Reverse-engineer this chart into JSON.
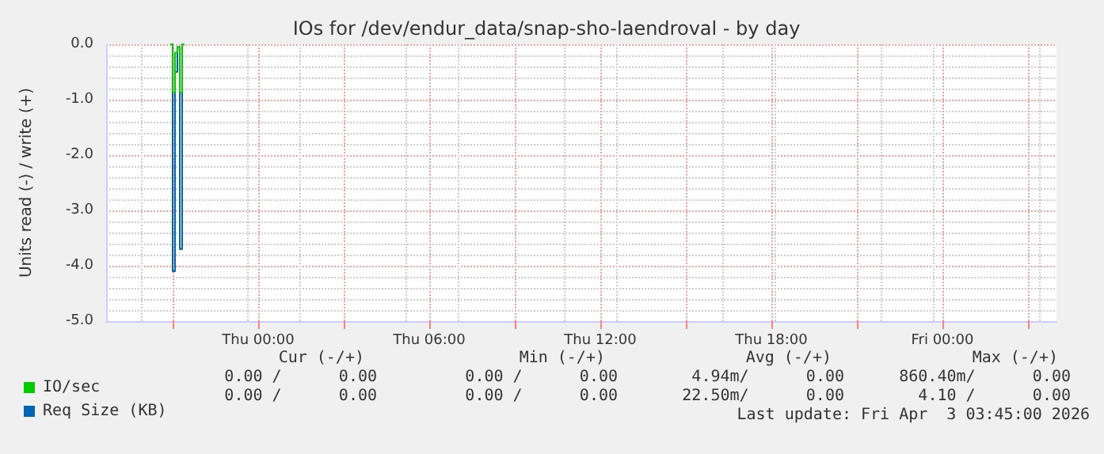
{
  "chart_data": {
    "type": "step",
    "title": "IOs for /dev/endur_data/snap-sho-laendroval - by day",
    "ylabel": "Units read (-) / write (+)",
    "series": [
      {
        "name": "IO/sec",
        "color": "#00cc00",
        "x": [
          "2026-04-01T20:55",
          "2026-04-01T21:00",
          "2026-04-01T21:05",
          "2026-04-01T21:10",
          "2026-04-01T21:15",
          "2026-04-01T21:20",
          "2026-04-01T21:25"
        ],
        "values": [
          0,
          -0.87,
          -0.15,
          -0.05,
          -0.87,
          0,
          0
        ]
      },
      {
        "name": "Req Size (KB)",
        "color": "#0066b3",
        "x": [
          "2026-04-01T20:55",
          "2026-04-01T21:00",
          "2026-04-01T21:05",
          "2026-04-01T21:10",
          "2026-04-01T21:15",
          "2026-04-01T21:20",
          "2026-04-01T21:25"
        ],
        "values": [
          0,
          -4.1,
          -0.5,
          -0.05,
          -3.7,
          0,
          0
        ]
      }
    ],
    "xlim": [
      "2026-04-01T18:40",
      "2026-04-03T04:00"
    ],
    "xticks": [
      {
        "value": "2026-04-01T21:00",
        "label": null
      },
      {
        "value": "2026-04-02T00:00",
        "label": "Thu 00:00"
      },
      {
        "value": "2026-04-02T03:00",
        "label": null
      },
      {
        "value": "2026-04-02T06:00",
        "label": "Thu 06:00"
      },
      {
        "value": "2026-04-02T09:00",
        "label": null
      },
      {
        "value": "2026-04-02T12:00",
        "label": "Thu 12:00"
      },
      {
        "value": "2026-04-02T15:00",
        "label": null
      },
      {
        "value": "2026-04-02T18:00",
        "label": "Thu 18:00"
      },
      {
        "value": "2026-04-02T21:00",
        "label": null
      },
      {
        "value": "2026-04-03T00:00",
        "label": "Fri 00:00"
      },
      {
        "value": "2026-04-03T03:00",
        "label": null
      }
    ],
    "ylim": [
      -5,
      0
    ],
    "yticks": [
      {
        "value": -5,
        "label": "-5.0"
      },
      {
        "value": -4,
        "label": "-4.0"
      },
      {
        "value": -3,
        "label": "-3.0"
      },
      {
        "value": -2,
        "label": "-2.0"
      },
      {
        "value": -1,
        "label": "-1.0"
      },
      {
        "value": 0,
        "label": "0.0"
      }
    ],
    "grid": true,
    "legend": "bottom left",
    "marker": "none",
    "line_style": "solid",
    "annotations": [
      "Cur (-/+)",
      "Min (-/+)",
      "Avg (-/+)",
      "Max (-/+)",
      "0.00 /      0.00",
      "0.00 /      0.00",
      "4.94m/      0.00",
      "860.40m/      0.00",
      "0.00 /      0.00",
      "0.00 /      0.00",
      "22.50m/      0.00",
      "4.10 /      0.00",
      "Last update: Fri Apr  3 03:45:00 2026"
    ]
  }
}
